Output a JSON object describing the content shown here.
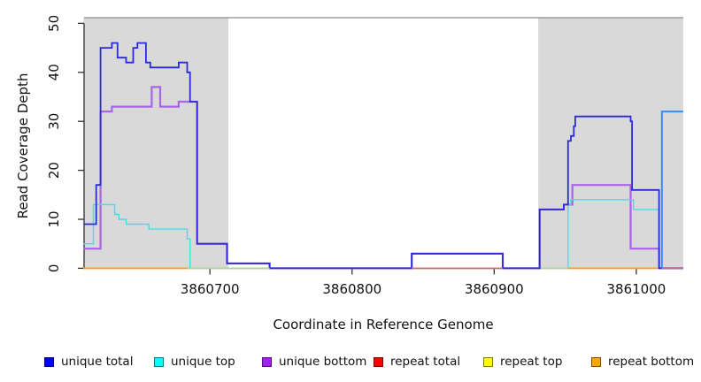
{
  "chart_data": {
    "type": "line",
    "subtype": "step-coverage-plot",
    "title": "",
    "xlabel": "Coordinate in Reference Genome",
    "ylabel": "Read Coverage Depth",
    "xlim": [
      3860611,
      3861033
    ],
    "ylim": [
      0,
      51
    ],
    "x_ticks": [
      3860700,
      3860800,
      3860900,
      3861000
    ],
    "y_ticks": [
      0,
      10,
      20,
      30,
      40,
      50
    ],
    "grid": false,
    "legend_position": "bottom",
    "shaded_regions": [
      {
        "name": "left-repeat-region",
        "x0": 3860611,
        "x1": 3860713,
        "color": "#d9d9d9"
      },
      {
        "name": "right-repeat-region",
        "x0": 3860931,
        "x1": 3861033,
        "color": "#d9d9d9"
      }
    ],
    "series": [
      {
        "name": "unique total",
        "line_color": "#2b2bdb",
        "legend_color": "#0000ff",
        "line_width": 1.8,
        "points": [
          [
            3860611,
            9
          ],
          [
            3860620,
            17
          ],
          [
            3860623,
            45
          ],
          [
            3860631,
            46
          ],
          [
            3860635,
            43
          ],
          [
            3860641,
            42
          ],
          [
            3860646,
            45
          ],
          [
            3860649,
            46
          ],
          [
            3860655,
            42
          ],
          [
            3860658,
            41
          ],
          [
            3860678,
            42
          ],
          [
            3860684,
            40
          ],
          [
            3860686,
            34
          ],
          [
            3860691,
            5
          ],
          [
            3860712,
            1
          ],
          [
            3860742,
            0
          ],
          [
            3860842,
            3
          ],
          [
            3860906,
            0
          ],
          [
            3860932,
            12
          ],
          [
            3860949,
            13
          ],
          [
            3860952,
            26
          ],
          [
            3860954,
            27
          ],
          [
            3860956,
            29
          ],
          [
            3860957,
            31
          ],
          [
            3860996,
            30
          ],
          [
            3860997,
            16
          ],
          [
            3861016,
            0
          ],
          [
            3861033,
            0
          ]
        ]
      },
      {
        "name": "unique top",
        "line_color": "#3fe0e8",
        "legend_color": "#00ffff",
        "line_width": 1.4,
        "points": [
          [
            3860611,
            5
          ],
          [
            3860618,
            13
          ],
          [
            3860633,
            11
          ],
          [
            3860636,
            10
          ],
          [
            3860641,
            9
          ],
          [
            3860657,
            8
          ],
          [
            3860684,
            6
          ],
          [
            3860686,
            0
          ],
          [
            3860952,
            13
          ],
          [
            3860954,
            14
          ],
          [
            3860998,
            12
          ],
          [
            3861016,
            0
          ],
          [
            3861033,
            0
          ]
        ]
      },
      {
        "name": "unique bottom",
        "line_color": "#aa64e6",
        "legend_color": "#a020f0",
        "line_width": 2.2,
        "points": [
          [
            3860611,
            4
          ],
          [
            3860623,
            32
          ],
          [
            3860631,
            33
          ],
          [
            3860659,
            37
          ],
          [
            3860665,
            33
          ],
          [
            3860678,
            34
          ],
          [
            3860691,
            5
          ],
          [
            3860712,
            1
          ],
          [
            3860742,
            0
          ],
          [
            3860842,
            3
          ],
          [
            3860906,
            0
          ],
          [
            3860932,
            12
          ],
          [
            3860949,
            13
          ],
          [
            3860955,
            17
          ],
          [
            3860996,
            4
          ],
          [
            3861016,
            0
          ],
          [
            3861033,
            0
          ]
        ]
      },
      {
        "name": "repeat total",
        "line_color": "#e0607f",
        "legend_color": "#ff0000",
        "line_width": 1.2,
        "points": [
          [
            3860611,
            0
          ],
          [
            3861033,
            0
          ]
        ]
      },
      {
        "name": "repeat top",
        "line_color": "#ffff00",
        "legend_color": "#ffff00",
        "line_width": 1.2,
        "points": [
          [
            3860611,
            0
          ],
          [
            3861033,
            0
          ]
        ]
      },
      {
        "name": "repeat bottom",
        "line_color": "#ffa200",
        "legend_color": "#ffa500",
        "line_width": 1.6,
        "points": [
          [
            3860611,
            0
          ],
          [
            3861033,
            0
          ]
        ]
      }
    ],
    "zero_line_visible_segments": [
      {
        "color": "#ffa200",
        "x0": 3860611,
        "x1": 3860684
      },
      {
        "color": "#a6d8a6",
        "x0": 3860684,
        "x1": 3860742
      },
      {
        "color": "#e0607f",
        "x0": 3860842,
        "x1": 3860906
      },
      {
        "color": "#a6d8a6",
        "x0": 3860933,
        "x1": 3860952
      },
      {
        "color": "#ffa200",
        "x0": 3860952,
        "x1": 3861014
      },
      {
        "color": "#e0607f",
        "x0": 3861018,
        "x1": 3861033
      }
    ],
    "unlabeled_highlight_segment": {
      "color": "#3b8aff",
      "y": 32,
      "x0": 3861018,
      "x1": 3861033,
      "line_width": 2
    }
  },
  "legend": {
    "items": [
      {
        "label": "unique total",
        "color": "#0000ff"
      },
      {
        "label": "unique top",
        "color": "#00ffff"
      },
      {
        "label": "unique bottom",
        "color": "#a020f0"
      },
      {
        "label": "repeat total",
        "color": "#ff0000"
      },
      {
        "label": "repeat top",
        "color": "#ffff00"
      },
      {
        "label": "repeat bottom",
        "color": "#ffa500"
      }
    ]
  }
}
